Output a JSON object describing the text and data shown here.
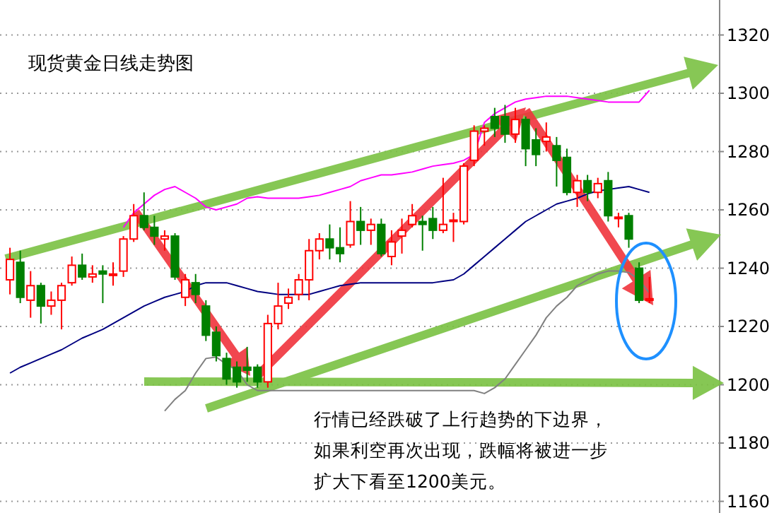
{
  "chart_data": {
    "type": "candlestick",
    "title": "现货黄金日线走势图",
    "annotations": [
      "行情已经跌破了上行趋势的下边界，如果利空再次出现，跌幅将被进一步扩大下看至1200美元。"
    ],
    "categories": [
      null,
      null,
      null,
      null,
      null,
      null,
      null,
      null,
      null,
      null,
      null,
      null,
      null,
      null,
      null,
      null,
      null,
      null,
      null,
      null,
      null,
      null,
      null,
      null,
      null,
      null,
      null,
      null,
      null,
      null,
      null,
      null,
      null,
      null,
      null,
      null,
      null,
      null,
      null,
      null,
      null,
      null,
      null,
      null,
      null,
      null,
      null,
      null,
      null,
      null,
      null,
      null,
      null,
      null,
      null,
      null,
      null,
      null,
      null,
      null,
      null,
      null,
      null
    ],
    "ohlc": [
      [
        1236,
        1247,
        1231,
        1243
      ],
      [
        1242,
        1246,
        1228,
        1230
      ],
      [
        1229,
        1239,
        1223,
        1234
      ],
      [
        1234,
        1235,
        1221,
        1227
      ],
      [
        1227,
        1232,
        1224,
        1229
      ],
      [
        1229,
        1235,
        1219,
        1234
      ],
      [
        1235,
        1244,
        1234,
        1241
      ],
      [
        1241,
        1245,
        1236,
        1237
      ],
      [
        1237,
        1241,
        1235,
        1238
      ],
      [
        1239,
        1241,
        1228,
        1238
      ],
      [
        1237.5,
        1242,
        1234,
        1238
      ],
      [
        1239,
        1251,
        1237,
        1250
      ],
      [
        1250,
        1262,
        1249,
        1258
      ],
      [
        1258,
        1266,
        1253,
        1254
      ],
      [
        1254,
        1258,
        1248,
        1251
      ],
      [
        1250,
        1253,
        1246,
        1251
      ],
      [
        1251,
        1252,
        1236,
        1237
      ],
      [
        1230,
        1238,
        1227,
        1236
      ],
      [
        1235,
        1238,
        1228,
        1231
      ],
      [
        1227,
        1229,
        1215,
        1217
      ],
      [
        1218,
        1220,
        1208,
        1210
      ],
      [
        1209,
        1211,
        1200,
        1202
      ],
      [
        1206,
        1208,
        1199,
        1201
      ],
      [
        1206,
        1213,
        1201,
        1205
      ],
      [
        1206,
        1207,
        1199,
        1201
      ],
      [
        1201,
        1224,
        1199,
        1221
      ],
      [
        1221,
        1235,
        1219,
        1227
      ],
      [
        1228,
        1233,
        1226,
        1230
      ],
      [
        1231,
        1238,
        1229,
        1236
      ],
      [
        1236,
        1250,
        1229,
        1246
      ],
      [
        1246,
        1252,
        1243,
        1250
      ],
      [
        1250,
        1255,
        1243,
        1247
      ],
      [
        1247,
        1254,
        1242,
        1245
      ],
      [
        1248,
        1263,
        1247,
        1256
      ],
      [
        1256,
        1261,
        1248,
        1253
      ],
      [
        1253,
        1257,
        1248,
        1255
      ],
      [
        1255,
        1257,
        1244,
        1245
      ],
      [
        1244,
        1253,
        1241,
        1249
      ],
      [
        1251,
        1257,
        1245,
        1253
      ],
      [
        1255,
        1262,
        1254,
        1258
      ],
      [
        1256,
        1258,
        1246,
        1255
      ],
      [
        1257,
        1261,
        1250,
        1253
      ],
      [
        1253,
        1271,
        1252,
        1255
      ],
      [
        1256,
        1259,
        1249,
        1256.5
      ],
      [
        1256,
        1276,
        1255,
        1275
      ],
      [
        1277,
        1289,
        1275,
        1287
      ],
      [
        1287,
        1289,
        1282,
        1288
      ],
      [
        1292,
        1295,
        1285,
        1288
      ],
      [
        1292,
        1296,
        1283,
        1286
      ],
      [
        1286,
        1295,
        1283,
        1291
      ],
      [
        1291,
        1292,
        1275,
        1281
      ],
      [
        1284,
        1288,
        1275,
        1279
      ],
      [
        1283.5,
        1290,
        1280,
        1285
      ],
      [
        1282,
        1285,
        1268,
        1277
      ],
      [
        1278,
        1281,
        1265,
        1266
      ],
      [
        1266,
        1272,
        1261,
        1270
      ],
      [
        1270,
        1272,
        1263,
        1266
      ],
      [
        1266,
        1271,
        1264,
        1269
      ],
      [
        1270,
        1273,
        1256,
        1258
      ],
      [
        1257,
        1259,
        1254,
        1257.5
      ],
      [
        1258,
        1259,
        1247,
        1250
      ],
      [
        1240,
        1242,
        1228,
        1229
      ],
      [
        1229,
        1237,
        1228,
        1229.5
      ]
    ],
    "series": [
      {
        "type": "line",
        "color": "#ff00ff",
        "values": [
          null,
          null,
          null,
          null,
          null,
          null,
          null,
          null,
          null,
          null,
          null,
          1254,
          1259,
          1262,
          1265,
          1267,
          1268,
          1266,
          1264,
          1261,
          1260,
          1261,
          1262,
          1264,
          1264.5,
          1264,
          1264,
          1264,
          1264,
          1264.5,
          1265,
          1266,
          1267,
          1268,
          1270,
          1271,
          1272,
          1272,
          1272.5,
          1273,
          1274,
          1275,
          1275.5,
          1276,
          1277,
          1279,
          1290,
          1293,
          1295,
          1297,
          1298,
          1298.5,
          1299,
          1299,
          1299,
          1298.5,
          1298,
          1297.5,
          1297,
          1297,
          1297,
          1297,
          1301
        ]
      },
      {
        "type": "line",
        "color": "#000080",
        "values": [
          1204,
          1206,
          1207.5,
          1209,
          1210.5,
          1212,
          1214,
          1216,
          1217.5,
          1219,
          1221,
          1223,
          1225,
          1227,
          1228.5,
          1230,
          1231,
          1232,
          1234,
          1235,
          1235,
          1235,
          1234,
          1233,
          1232,
          1231.5,
          1231,
          1231,
          1231,
          1231,
          1232,
          1233,
          1234,
          1234.5,
          1235,
          1235,
          1235,
          1235,
          1235,
          1235,
          1235,
          1235,
          1235.5,
          1236,
          1238,
          1241,
          1244,
          1247,
          1250,
          1253,
          1256,
          1258,
          1260,
          1262,
          1263,
          1264,
          1265.5,
          1266.5,
          1267,
          1267.5,
          1268,
          1267,
          1266
        ]
      },
      {
        "type": "line",
        "color": "#808080",
        "values": [
          null,
          null,
          null,
          null,
          null,
          null,
          null,
          null,
          null,
          null,
          null,
          null,
          null,
          null,
          null,
          1191,
          1195,
          1198,
          1204,
          1209,
          1209.5,
          1207,
          1205,
          1200,
          1198,
          1198,
          1198,
          1198,
          1198,
          1198,
          1198,
          1198,
          1198,
          1198,
          1198,
          1198,
          1198,
          1198,
          1198,
          1198,
          1198,
          1198,
          1198,
          1198,
          1198,
          1198,
          1197,
          1199,
          1202,
          1207,
          1212,
          1217,
          1223,
          1227,
          1230,
          1234,
          1236,
          1238,
          1239,
          1239,
          1238.5,
          1236,
          1231.5
        ]
      }
    ],
    "ylim": [
      1156,
      1332
    ],
    "yticks": [
      1160,
      1180,
      1200,
      1220,
      1240,
      1260,
      1280,
      1300,
      1320
    ],
    "grid": "y",
    "tick_labels": "y"
  }
}
